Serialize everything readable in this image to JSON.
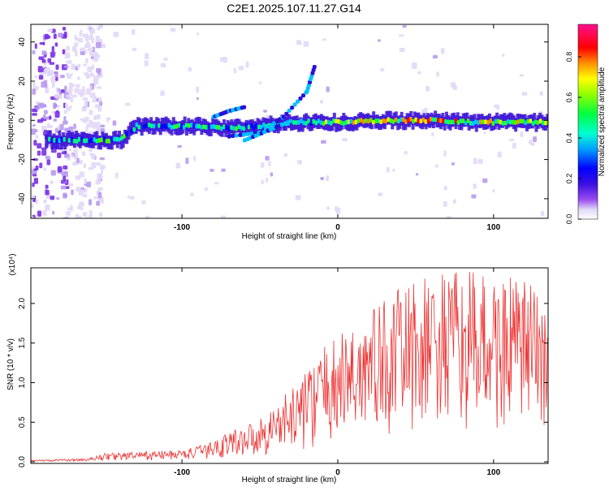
{
  "title": "C2E1.2025.107.11.27.G14",
  "colors": {
    "colormap": [
      "#f8f8f8",
      "#c7b8f2",
      "#8a3cf0",
      "#3b20d6",
      "#0000ff",
      "#00c8ff",
      "#00ff80",
      "#40ff00",
      "#e8ff00",
      "#ff9000",
      "#ff0000",
      "#ff0090"
    ],
    "snr_line": "#ee3333"
  },
  "chart_data": [
    {
      "type": "heatmap",
      "name": "spectrogram",
      "xlabel": "Height of straight line (km)",
      "ylabel": "Frequency (Hz)",
      "xlim": [
        -197,
        135
      ],
      "ylim": [
        -50,
        49
      ],
      "x_ticks": [
        -100,
        0,
        100
      ],
      "y_ticks": [
        -40,
        -20,
        0,
        20,
        40
      ],
      "colorbar": {
        "label": "Normalized spectral amplitude",
        "range": [
          0,
          0.96
        ],
        "ticks": [
          "0.0",
          "0.2",
          "0.4",
          "0.6",
          "0.8"
        ]
      },
      "ridge": [
        {
          "x": -180,
          "freq": -10,
          "amp": 0.55
        },
        {
          "x": -160,
          "freq": -10,
          "amp": 0.6
        },
        {
          "x": -140,
          "freq": -10,
          "amp": 0.6
        },
        {
          "x": -130,
          "freq": -3,
          "amp": 0.5
        },
        {
          "x": -110,
          "freq": -3,
          "amp": 0.55
        },
        {
          "x": -90,
          "freq": -3,
          "amp": 0.6
        },
        {
          "x": -70,
          "freq": -4,
          "amp": 0.55
        },
        {
          "x": -50,
          "freq": -3,
          "amp": 0.55
        },
        {
          "x": -30,
          "freq": -1,
          "amp": 0.5
        },
        {
          "x": 0,
          "freq": -1,
          "amp": 0.7
        },
        {
          "x": 30,
          "freq": 0,
          "amp": 0.8
        },
        {
          "x": 60,
          "freq": 0,
          "amp": 0.85
        },
        {
          "x": 90,
          "freq": -1,
          "amp": 0.75
        },
        {
          "x": 120,
          "freq": -1,
          "amp": 0.75
        },
        {
          "x": 135,
          "freq": -1,
          "amp": 0.7
        }
      ]
    },
    {
      "type": "line",
      "name": "snr",
      "xlabel": "Height of straight line (km)",
      "ylabel": "SNR (10 * v/v)",
      "y_multiplier": "(x10⁴)",
      "xlim": [
        -197,
        135
      ],
      "ylim": [
        -0.02,
        2.45
      ],
      "x_ticks": [
        -100,
        0,
        100
      ],
      "y_ticks": [
        0.0,
        0.5,
        1.0,
        1.5,
        2.0
      ],
      "envelope": [
        {
          "x": -197,
          "y": 0.02
        },
        {
          "x": -160,
          "y": 0.04
        },
        {
          "x": -150,
          "y": 0.1
        },
        {
          "x": -120,
          "y": 0.12
        },
        {
          "x": -100,
          "y": 0.14
        },
        {
          "x": -85,
          "y": 0.2
        },
        {
          "x": -70,
          "y": 0.35
        },
        {
          "x": -50,
          "y": 0.5
        },
        {
          "x": -35,
          "y": 0.75
        },
        {
          "x": -20,
          "y": 1.05
        },
        {
          "x": -10,
          "y": 1.3
        },
        {
          "x": 0,
          "y": 1.45
        },
        {
          "x": 20,
          "y": 1.75
        },
        {
          "x": 40,
          "y": 2.0
        },
        {
          "x": 60,
          "y": 2.15
        },
        {
          "x": 80,
          "y": 2.2
        },
        {
          "x": 100,
          "y": 2.15
        },
        {
          "x": 120,
          "y": 2.1
        },
        {
          "x": 135,
          "y": 1.95
        }
      ]
    }
  ]
}
